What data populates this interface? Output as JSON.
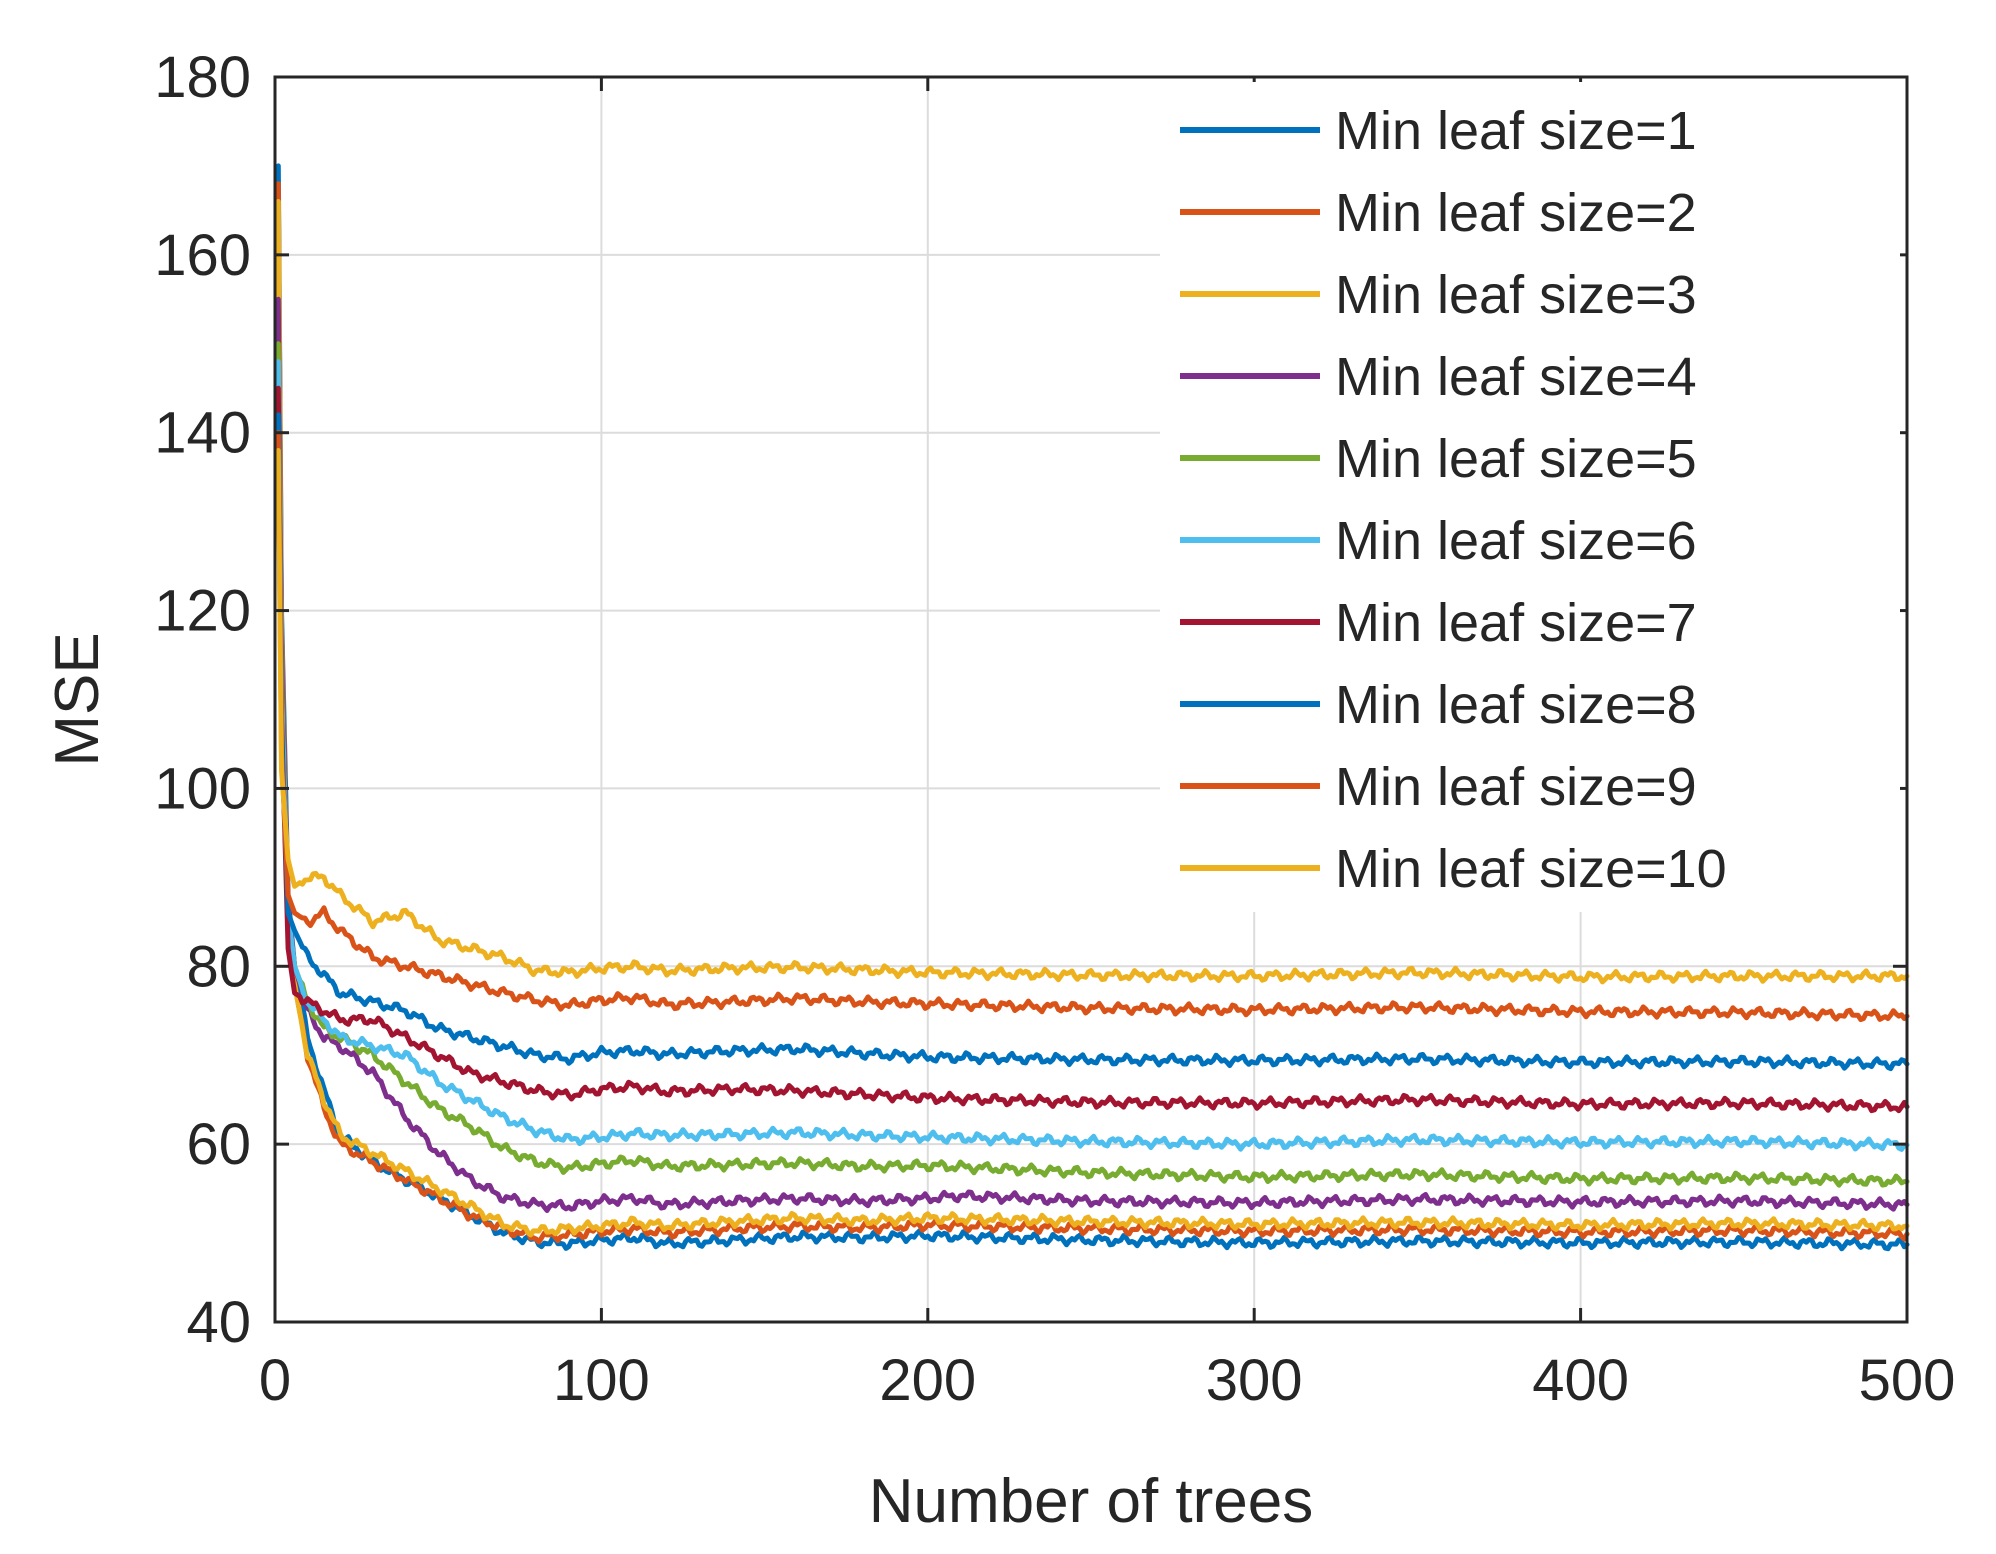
{
  "chart_data": {
    "type": "line",
    "title": "",
    "xlabel": "Number of trees",
    "ylabel": "MSE",
    "xlim": [
      0,
      500
    ],
    "ylim": [
      40,
      180
    ],
    "xticks": [
      0,
      100,
      200,
      300,
      400,
      500
    ],
    "yticks": [
      40,
      60,
      80,
      100,
      120,
      140,
      160,
      180
    ],
    "grid": true,
    "legend_position": "top-right",
    "series": [
      {
        "name": "Min leaf size=1",
        "color": "#0072BD",
        "x": [
          1,
          2,
          4,
          6,
          10,
          15,
          20,
          30,
          40,
          50,
          60,
          70,
          80,
          90,
          100,
          110,
          120,
          140,
          160,
          180,
          200,
          250,
          300,
          350,
          400,
          450,
          500
        ],
        "values": [
          170,
          120,
          88,
          80,
          72,
          66,
          61,
          58,
          56,
          54,
          52,
          50,
          49,
          48.8,
          49.2,
          49.5,
          48.8,
          49.2,
          49.6,
          49.5,
          49.7,
          49.2,
          48.9,
          49.1,
          48.9,
          49.0,
          48.7
        ]
      },
      {
        "name": "Min leaf size=2",
        "color": "#D95319",
        "x": [
          1,
          2,
          4,
          6,
          10,
          15,
          20,
          30,
          40,
          50,
          60,
          70,
          80,
          90,
          100,
          110,
          120,
          140,
          160,
          180,
          200,
          250,
          300,
          350,
          400,
          450,
          500
        ],
        "values": [
          168,
          118,
          86,
          78,
          70,
          64,
          60,
          58,
          56,
          54,
          52,
          50.5,
          49.5,
          49.8,
          50.2,
          50.5,
          50.0,
          50.5,
          50.8,
          50.6,
          50.9,
          50.5,
          50.2,
          50.4,
          50.1,
          50.3,
          49.9
        ]
      },
      {
        "name": "Min leaf size=3",
        "color": "#EDB120",
        "x": [
          1,
          2,
          4,
          6,
          10,
          15,
          20,
          30,
          40,
          50,
          60,
          70,
          80,
          90,
          100,
          110,
          120,
          140,
          160,
          180,
          200,
          250,
          300,
          350,
          400,
          450,
          500
        ],
        "values": [
          166,
          116,
          86,
          78,
          70,
          65,
          61,
          59,
          57,
          55,
          53,
          51,
          50.2,
          50.5,
          50.8,
          51.2,
          50.8,
          51.3,
          51.7,
          51.4,
          51.7,
          51.3,
          51.0,
          51.2,
          50.9,
          51.1,
          50.8
        ]
      },
      {
        "name": "Min leaf size=4",
        "color": "#7E2F8E",
        "x": [
          1,
          2,
          4,
          6,
          10,
          15,
          20,
          30,
          40,
          50,
          60,
          70,
          80,
          90,
          100,
          110,
          120,
          140,
          160,
          180,
          200,
          210,
          250,
          300,
          350,
          400,
          450,
          500
        ],
        "values": [
          155,
          115,
          87,
          80,
          75,
          72,
          71,
          68,
          63,
          59,
          56,
          54,
          53.2,
          53.0,
          53.6,
          53.9,
          53.2,
          53.6,
          53.9,
          53.6,
          53.9,
          54.2,
          53.6,
          53.4,
          53.8,
          53.5,
          53.6,
          53.2
        ]
      },
      {
        "name": "Min leaf size=5",
        "color": "#77AC30",
        "x": [
          1,
          2,
          4,
          6,
          10,
          15,
          20,
          30,
          40,
          50,
          60,
          70,
          80,
          90,
          100,
          110,
          120,
          140,
          160,
          180,
          200,
          250,
          300,
          350,
          400,
          450,
          500
        ],
        "values": [
          150,
          112,
          86,
          80,
          76,
          73,
          72,
          70,
          67,
          64,
          62,
          59.5,
          58,
          57.3,
          57.8,
          58.2,
          57.5,
          57.7,
          57.9,
          57.5,
          57.6,
          56.8,
          56.3,
          56.6,
          56.1,
          56.2,
          55.8
        ]
      },
      {
        "name": "Min leaf size=6",
        "color": "#4DBEEE",
        "x": [
          1,
          2,
          4,
          6,
          10,
          15,
          20,
          30,
          40,
          50,
          60,
          70,
          80,
          90,
          100,
          110,
          120,
          140,
          160,
          180,
          200,
          250,
          300,
          350,
          400,
          450,
          500
        ],
        "values": [
          148,
          110,
          86,
          80,
          76,
          74,
          72,
          71,
          70,
          67,
          65,
          63,
          61.5,
          60.5,
          60.8,
          61.2,
          61.0,
          61.1,
          61.3,
          61.0,
          60.8,
          60.3,
          60.0,
          60.5,
          60.2,
          60.3,
          59.9
        ]
      },
      {
        "name": "Min leaf size=7",
        "color": "#A2142F",
        "x": [
          1,
          2,
          4,
          6,
          10,
          15,
          20,
          30,
          40,
          50,
          60,
          70,
          80,
          90,
          100,
          110,
          120,
          140,
          160,
          180,
          200,
          250,
          300,
          350,
          400,
          450,
          500
        ],
        "values": [
          145,
          108,
          82,
          77,
          76,
          75,
          74,
          74,
          72,
          70,
          68,
          67,
          66,
          65.5,
          66.2,
          66.5,
          65.9,
          66.2,
          66.0,
          65.6,
          65.2,
          64.7,
          64.6,
          65.0,
          64.5,
          64.6,
          64.2
        ]
      },
      {
        "name": "Min leaf size=8",
        "color": "#0072BD",
        "x": [
          1,
          2,
          4,
          6,
          10,
          15,
          20,
          30,
          40,
          50,
          60,
          70,
          80,
          90,
          100,
          110,
          120,
          140,
          160,
          180,
          200,
          250,
          300,
          350,
          400,
          450,
          500
        ],
        "values": [
          142,
          106,
          86,
          84,
          81,
          79,
          77,
          76,
          75,
          73,
          72,
          71,
          70,
          69.6,
          70.3,
          70.5,
          70.1,
          70.5,
          70.7,
          70.2,
          69.8,
          69.5,
          69.4,
          69.6,
          69.2,
          69.3,
          69.0
        ]
      },
      {
        "name": "Min leaf size=9",
        "color": "#D95319",
        "x": [
          1,
          2,
          4,
          6,
          10,
          15,
          20,
          30,
          40,
          50,
          60,
          70,
          80,
          90,
          100,
          110,
          120,
          140,
          160,
          180,
          200,
          250,
          300,
          350,
          400,
          450,
          500
        ],
        "values": [
          140,
          104,
          88,
          86,
          85,
          86,
          84,
          81,
          80,
          79,
          78,
          77,
          76.2,
          75.6,
          76.2,
          76.5,
          75.7,
          76.0,
          76.4,
          76.0,
          75.8,
          75.3,
          75.1,
          75.4,
          74.9,
          74.8,
          74.4
        ]
      },
      {
        "name": "Min leaf size=10",
        "color": "#EDB120",
        "x": [
          1,
          2,
          4,
          6,
          10,
          15,
          20,
          30,
          40,
          50,
          60,
          70,
          80,
          90,
          100,
          110,
          120,
          140,
          160,
          180,
          200,
          250,
          300,
          350,
          400,
          450,
          500
        ],
        "values": [
          138,
          102,
          92,
          89,
          90,
          90,
          88,
          85,
          86,
          83,
          82,
          81,
          79.5,
          79.3,
          79.8,
          80.0,
          79.5,
          79.8,
          79.9,
          79.6,
          79.3,
          79.0,
          78.9,
          79.3,
          78.8,
          78.9,
          78.9
        ]
      }
    ]
  }
}
